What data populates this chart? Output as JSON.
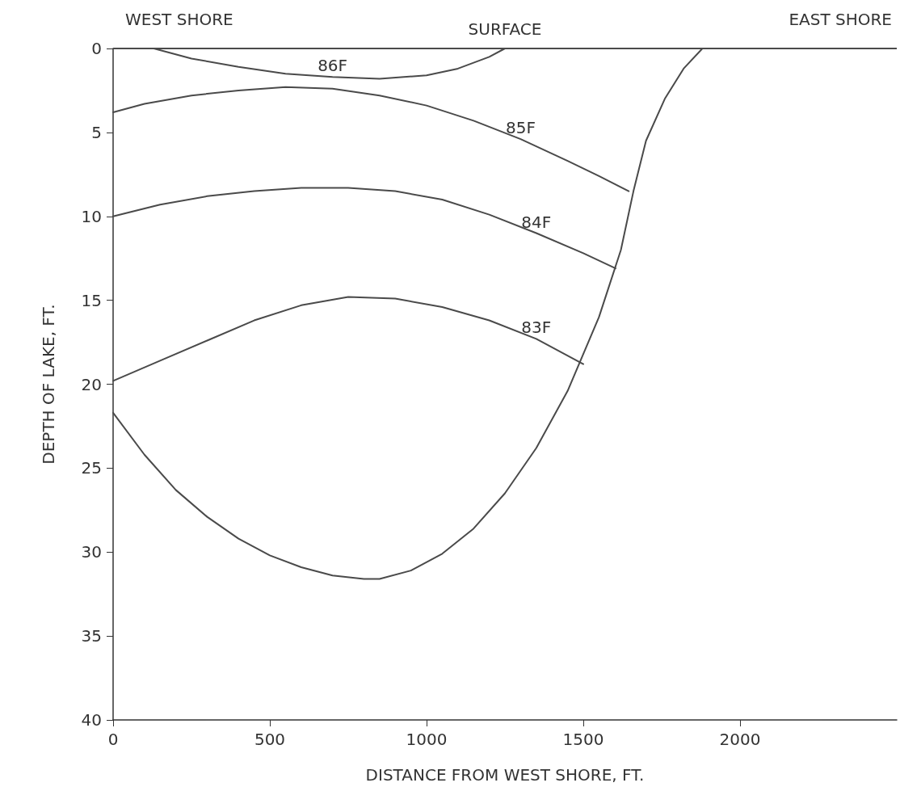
{
  "chart_data": {
    "type": "line",
    "xlabel": "DISTANCE FROM WEST SHORE, FT.",
    "ylabel": "DEPTH OF LAKE, FT.",
    "xlim": [
      0,
      2500
    ],
    "xticks": [
      0,
      500,
      1000,
      1500,
      2000
    ],
    "ylim": [
      40,
      0
    ],
    "yticks": [
      0,
      5,
      10,
      15,
      20,
      25,
      30,
      35,
      40
    ],
    "grid": false,
    "marker": "none",
    "line_style": "solid",
    "series": [
      {
        "color": "#4a4a4a",
        "x": [
          130,
          250,
          400,
          550,
          700,
          850,
          1000,
          1100,
          1200,
          1250
        ],
        "values": [
          0,
          0.6,
          1.1,
          1.5,
          1.7,
          1.8,
          1.6,
          1.2,
          0.5,
          0
        ]
      },
      {
        "color": "#4a4a4a",
        "x": [
          0,
          100,
          250,
          400,
          550,
          700,
          850,
          1000,
          1150,
          1300,
          1450,
          1550,
          1645
        ],
        "values": [
          3.8,
          3.3,
          2.8,
          2.5,
          2.3,
          2.4,
          2.8,
          3.4,
          4.3,
          5.4,
          6.7,
          7.6,
          8.5
        ]
      },
      {
        "color": "#4a4a4a",
        "x": [
          0,
          150,
          300,
          450,
          600,
          750,
          900,
          1050,
          1200,
          1350,
          1500,
          1603
        ],
        "values": [
          10,
          9.3,
          8.8,
          8.5,
          8.3,
          8.3,
          8.5,
          9,
          9.9,
          11,
          12.2,
          13.1
        ]
      },
      {
        "color": "#4a4a4a",
        "x": [
          0,
          150,
          300,
          450,
          600,
          750,
          900,
          1050,
          1200,
          1350,
          1500
        ],
        "values": [
          19.8,
          18.6,
          17.4,
          16.2,
          15.3,
          14.8,
          14.9,
          15.4,
          16.2,
          17.3,
          18.8
        ]
      },
      {
        "color": "#4a4a4a",
        "x": [
          0,
          100,
          200,
          300,
          400,
          500,
          600,
          700,
          800,
          850,
          950,
          1050,
          1150,
          1250,
          1350,
          1450,
          1550,
          1620,
          1660,
          1700,
          1760,
          1820,
          1880
        ],
        "values": [
          21.7,
          24.2,
          26.3,
          27.9,
          29.2,
          30.2,
          30.9,
          31.4,
          31.6,
          31.6,
          31.1,
          30.1,
          28.6,
          26.5,
          23.8,
          20.4,
          16,
          12,
          8.5,
          5.5,
          3,
          1.2,
          0
        ]
      }
    ],
    "ref_lines": [
      {
        "axis": "y",
        "value": 0,
        "label": "SURFACE",
        "color": "#4a4a4a"
      }
    ],
    "annotations": [
      "WEST SHORE",
      "EAST SHORE",
      {
        "text": "86F",
        "x": 700,
        "y": 1.7
      },
      {
        "text": "85F",
        "x": 1300,
        "y": 5.4
      },
      {
        "text": "84F",
        "x": 1350,
        "y": 11
      },
      {
        "text": "83F",
        "x": 1350,
        "y": 17.3
      }
    ]
  }
}
